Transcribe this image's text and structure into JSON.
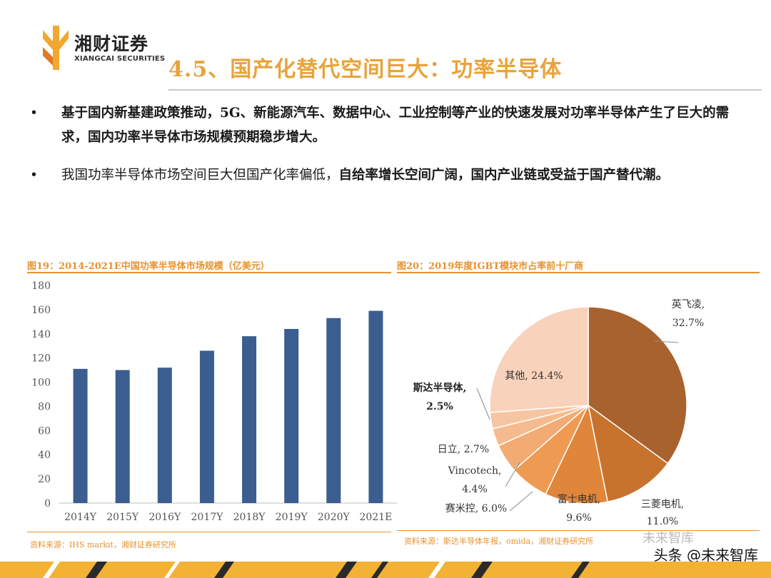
{
  "header": {
    "logo_cn": "湘财证券",
    "logo_en": "XIANGCAI SECURITIES",
    "title": "4.5、国产化替代空间巨大：功率半导体"
  },
  "bullets": [
    {
      "parts": [
        {
          "text": "基于国内新基建政策推动，5G、新能源汽车、数据中心、工业控制等产业的快速发展对功率半导体产生了巨大的需求，国内功率半导体市场规模预期稳步增大。",
          "bold": true
        }
      ]
    },
    {
      "parts": [
        {
          "text": "我国功率半导体市场空间巨大但国产化率偏低，",
          "bold": false
        },
        {
          "text": "自给率增长空间广阔，国内产业链或受益于国产替代潮。",
          "bold": true
        }
      ]
    }
  ],
  "bullet_symbol": "•",
  "figure1": {
    "caption": "图19：2014-2021E中国功率半导体市场规模（亿美元）",
    "source": "资料来源：IHS markit，湘财证券研究所"
  },
  "figure2": {
    "caption": "图20：2019年度IGBT模块市占率前十厂商",
    "source": "资料来源：斯达半导体年报，omida，湘财证券研究所"
  },
  "watermark": "头条 @未来智库",
  "watermark_faint": "未来智库",
  "colors": {
    "accent": "#e8922d",
    "title": "#e8a33a",
    "bar": "#3b5d8f"
  },
  "chart_data": [
    {
      "type": "bar",
      "title": "",
      "categories": [
        "2014Y",
        "2015Y",
        "2016Y",
        "2017Y",
        "2018Y",
        "2019Y",
        "2020Y",
        "2021E"
      ],
      "values": [
        111,
        110,
        112,
        126,
        138,
        144,
        153,
        159
      ],
      "ylim": [
        0,
        180
      ],
      "yticks": [
        0,
        20,
        40,
        60,
        80,
        100,
        120,
        140,
        160,
        180
      ],
      "grid": false,
      "color": "#3b5d8f"
    },
    {
      "type": "pie",
      "title": "",
      "slices": [
        {
          "name": "英飞凌,",
          "pct": "32.7%",
          "value": 32.7,
          "color": "#a8622e"
        },
        {
          "name": "三菱电机,",
          "pct": "11.0%",
          "value": 11.0,
          "color": "#c8732d"
        },
        {
          "name": "富士电机,",
          "pct": "9.6%",
          "value": 9.6,
          "color": "#e0863a"
        },
        {
          "name": "赛米控,",
          "pct": "6.0%",
          "value": 6.0,
          "color": "#ef9a52"
        },
        {
          "name": "Vincotech,",
          "pct": "4.4%",
          "value": 4.4,
          "color": "#f2ab72"
        },
        {
          "name": "日立,",
          "pct": "2.7%",
          "value": 2.7,
          "color": "#f5bb8f"
        },
        {
          "name": "斯达半导体,",
          "pct": "2.5%",
          "value": 2.5,
          "color": "#f6c6a2",
          "bold": true
        },
        {
          "name": "其他,",
          "pct": "24.4%",
          "value": 24.4,
          "color": "#f8d2bb"
        }
      ]
    }
  ]
}
